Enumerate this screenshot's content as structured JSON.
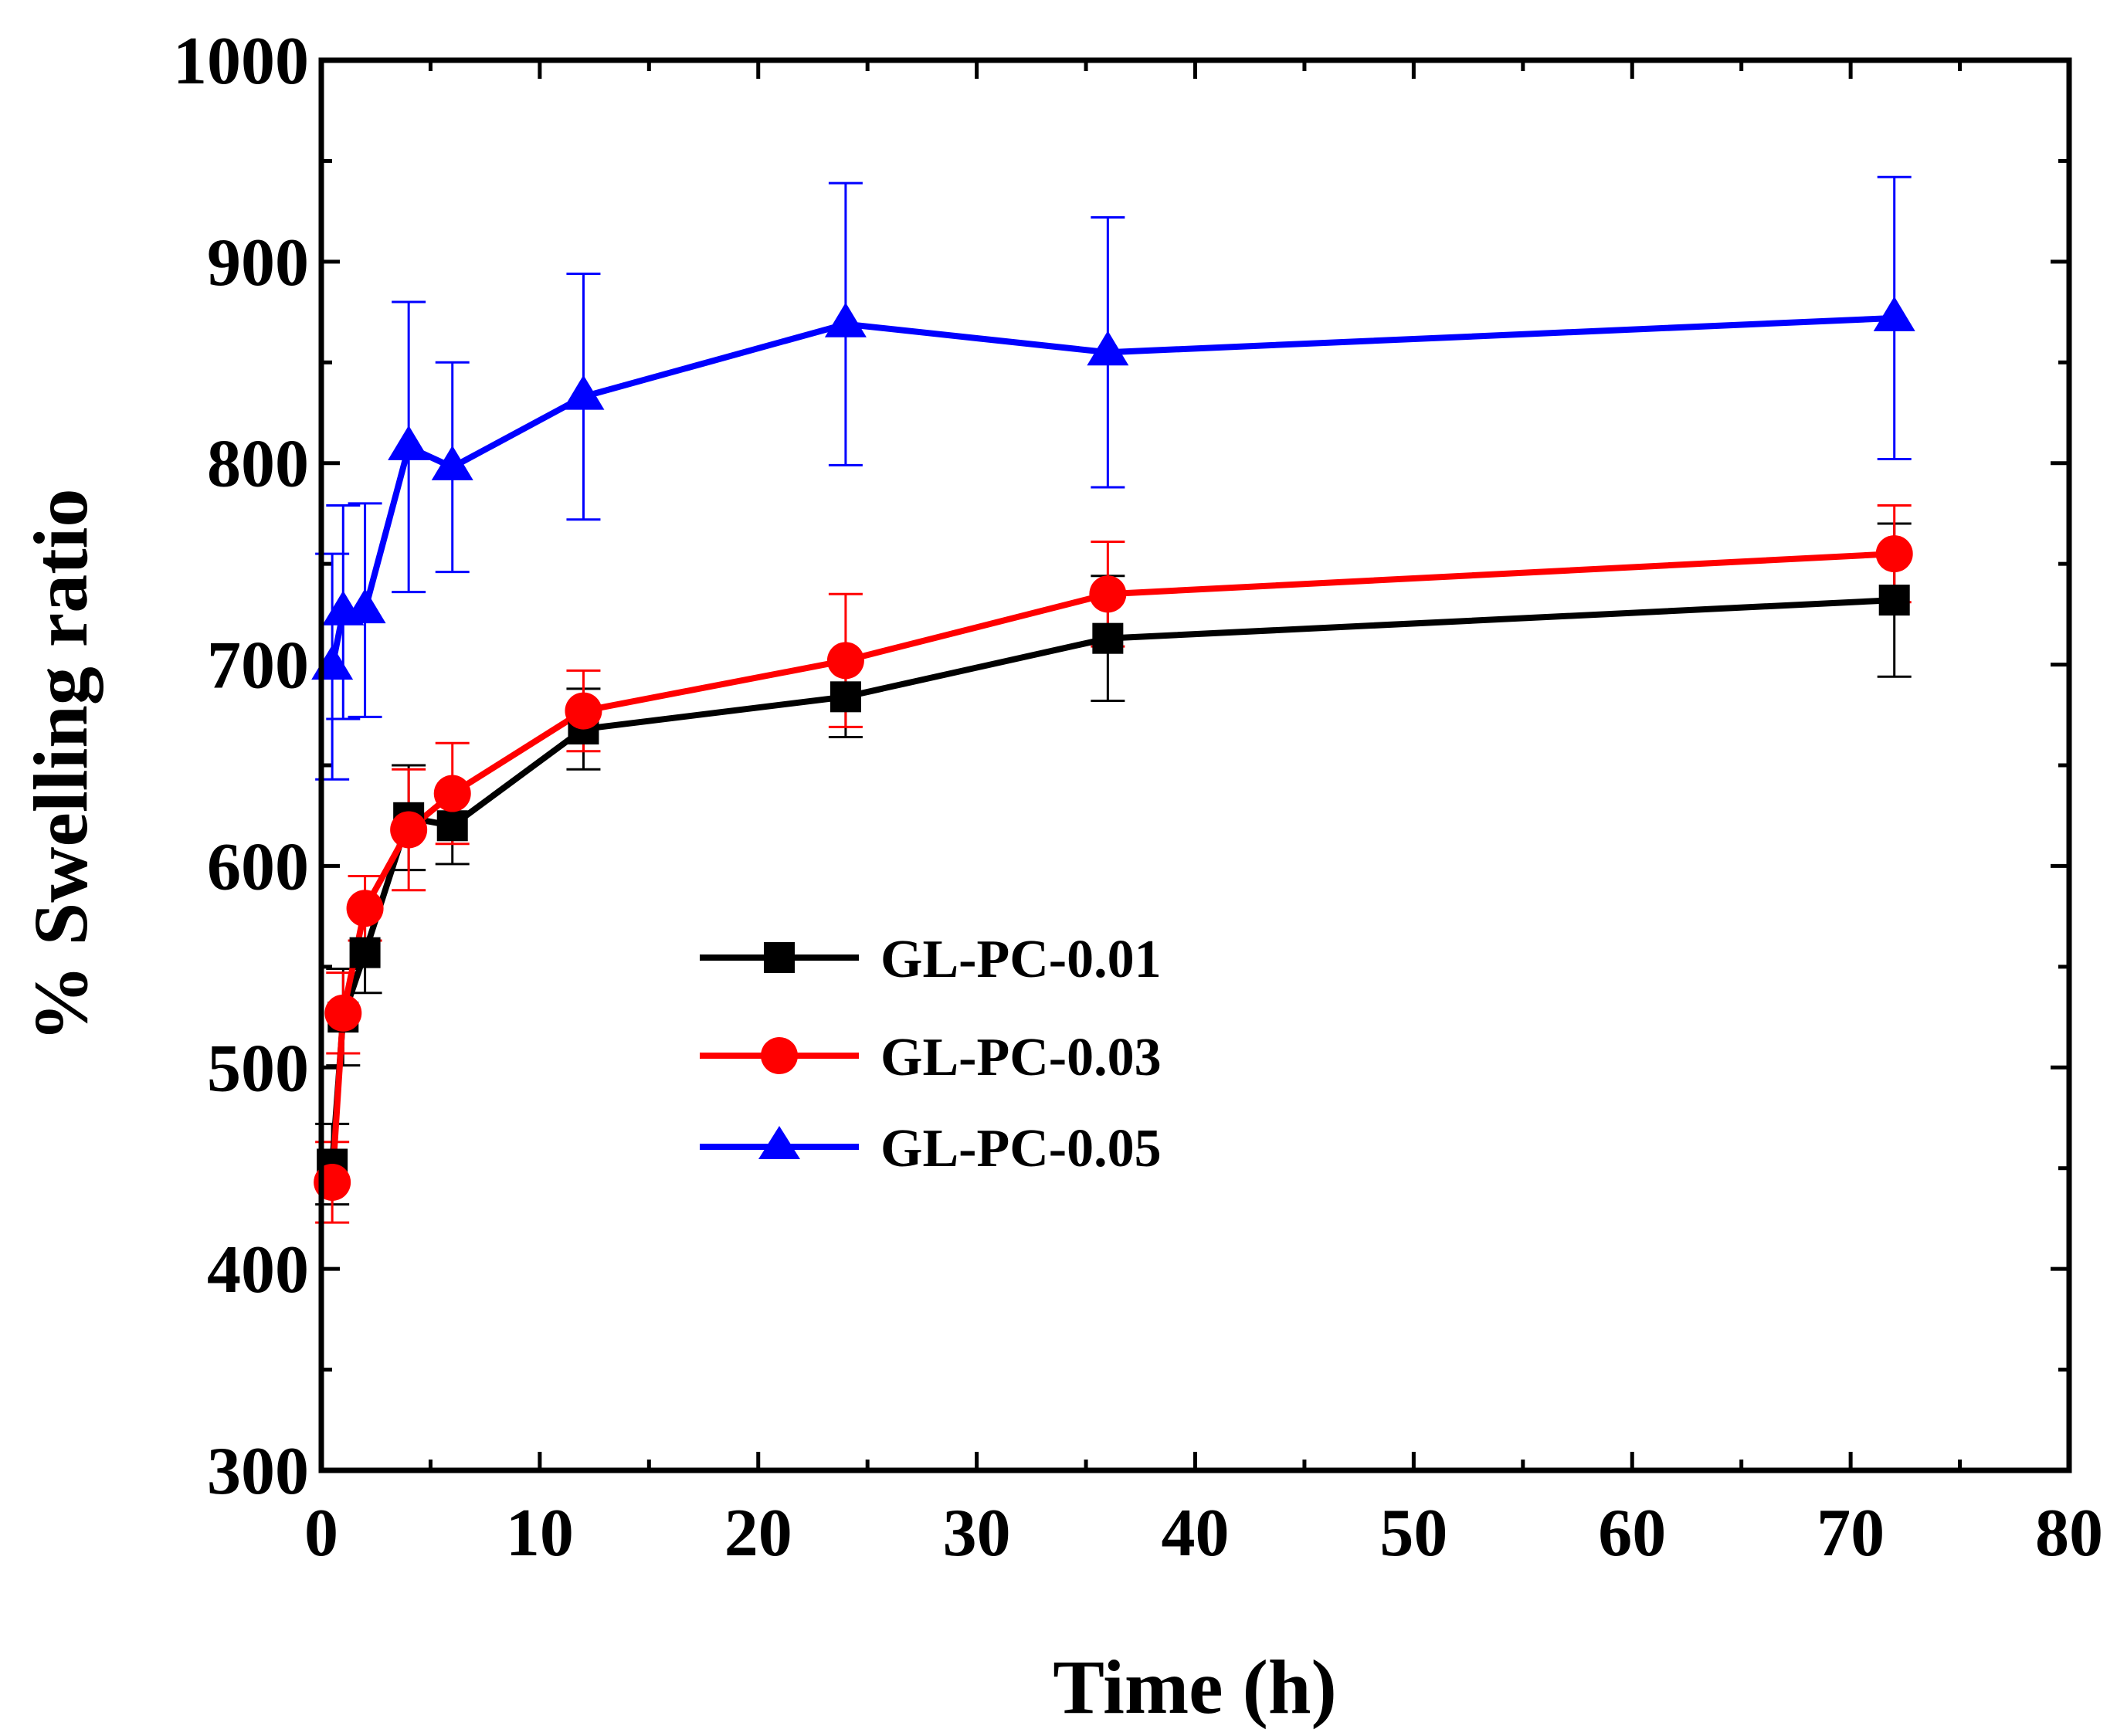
{
  "chart_data": {
    "type": "line",
    "title": "",
    "xlabel": "Time (h)",
    "ylabel": "% Swelling ratio",
    "xlim": [
      0,
      80
    ],
    "ylim": [
      300,
      1000
    ],
    "xticks": [
      0,
      10,
      20,
      30,
      40,
      50,
      60,
      70,
      80
    ],
    "yticks": [
      300,
      400,
      500,
      600,
      700,
      800,
      900,
      1000
    ],
    "grid": false,
    "legend_position": "center-left",
    "x": [
      0.5,
      1,
      2,
      4,
      6,
      12,
      24,
      36,
      72
    ],
    "series": [
      {
        "name": "GL-PC-0.01",
        "color": "#000000",
        "marker": "square",
        "values": [
          452,
          525,
          557,
          624,
          620,
          668,
          684,
          713,
          732
        ],
        "errors": [
          20,
          24,
          20,
          26,
          19,
          20,
          20,
          31,
          38
        ]
      },
      {
        "name": "GL-PC-0.03",
        "color": "#ff0000",
        "marker": "circle",
        "values": [
          443,
          527,
          579,
          618,
          636,
          677,
          702,
          735,
          755
        ],
        "errors": [
          20,
          20,
          16,
          30,
          25,
          20,
          33,
          26,
          24
        ]
      },
      {
        "name": "GL-PC-0.05",
        "color": "#0000ff",
        "marker": "triangle",
        "values": [
          699,
          726,
          727,
          808,
          798,
          833,
          869,
          855,
          872
        ],
        "errors": [
          56,
          53,
          53,
          72,
          52,
          61,
          70,
          67,
          70
        ]
      }
    ]
  }
}
